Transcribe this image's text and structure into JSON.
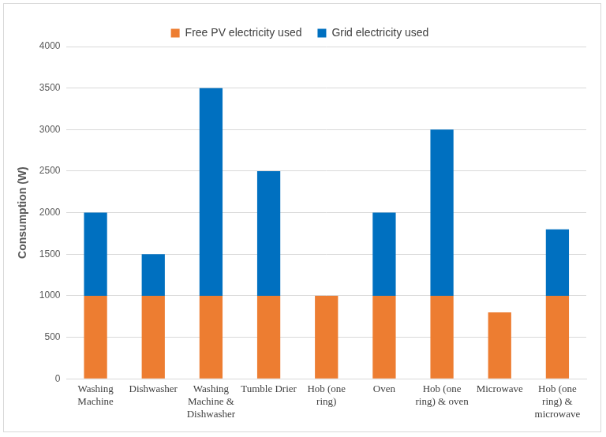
{
  "chart_data": {
    "type": "bar",
    "stacked": true,
    "grid": true,
    "legend": "top",
    "y_label": "Consumption (W)",
    "categories": [
      "Washing Machine",
      "Dishwasher",
      "Washing Machine & Dishwasher",
      "Tumble Drier",
      "Hob (one ring)",
      "Oven",
      "Hob (one ring) & oven",
      "Microwave",
      "Hob (one ring) & microwave"
    ],
    "series": [
      {
        "name": "Free PV electricity used",
        "color": "#ed7d31",
        "values": [
          1000,
          1000,
          1000,
          1000,
          1000,
          1000,
          1000,
          800,
          1000
        ]
      },
      {
        "name": "Grid electricity used",
        "color": "#0070c0",
        "values": [
          1000,
          500,
          2500,
          1500,
          0,
          1000,
          2000,
          0,
          800
        ]
      }
    ],
    "ylim": [
      0,
      4000
    ],
    "yticks": [
      0,
      500,
      1000,
      1500,
      2000,
      2500,
      3000,
      3500,
      4000
    ]
  }
}
